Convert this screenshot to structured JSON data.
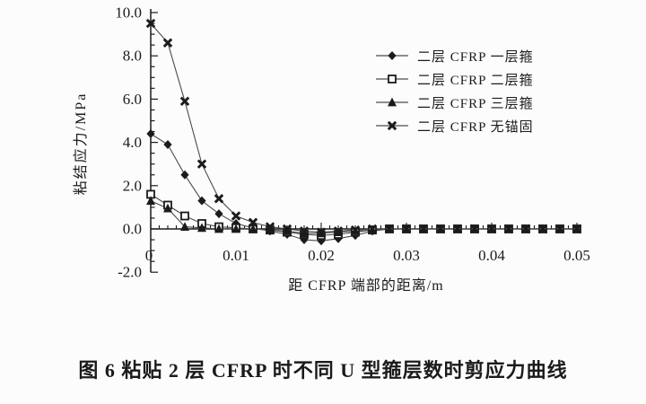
{
  "figure": {
    "caption": "图 6  粘贴 2 层 CFRP 时不同 U 型箍层数时剪应力曲线"
  },
  "chart_data": {
    "type": "line",
    "title": "",
    "xlabel": "距 CFRP 端部的距离/m",
    "ylabel": "粘结应力/MPa",
    "xlim": [
      0,
      0.05
    ],
    "ylim": [
      -2.0,
      10.0
    ],
    "x_tick_values": [
      0,
      0.01,
      0.02,
      0.03,
      0.04,
      0.05
    ],
    "x_tick_labels": [
      "0",
      "0.01",
      "0.02",
      "0.03",
      "0.04",
      "0.05"
    ],
    "x_minor_step": 0.001,
    "y_tick_values": [
      -2,
      0,
      2,
      4,
      6,
      8,
      10
    ],
    "y_tick_labels": [
      "-2.0",
      "0.0",
      "2.0",
      "4.0",
      "6.0",
      "8.0",
      "10.0"
    ],
    "y_minor_step": 0.5,
    "grid": false,
    "legend_position": "upper-right-inside",
    "ink_color": "#1b1b1b",
    "line_color": "#4d4d4d",
    "background_color": "#fcfcfc",
    "x": [
      0,
      0.002,
      0.004,
      0.006,
      0.008,
      0.01,
      0.012,
      0.014,
      0.016,
      0.018,
      0.02,
      0.022,
      0.024,
      0.026,
      0.028,
      0.03,
      0.032,
      0.034,
      0.036,
      0.038,
      0.04,
      0.042,
      0.044,
      0.046,
      0.048,
      0.05
    ],
    "series": [
      {
        "name": "二层 CFRP 一层箍",
        "marker": "diamond",
        "values": [
          4.4,
          3.9,
          2.5,
          1.3,
          0.7,
          0.25,
          0.05,
          -0.1,
          -0.25,
          -0.5,
          -0.55,
          -0.45,
          -0.3,
          -0.1,
          0,
          0,
          0,
          0,
          0,
          0,
          0,
          0,
          0,
          0,
          0,
          0
        ]
      },
      {
        "name": "二层 CFRP 二层箍",
        "marker": "open-square",
        "values": [
          1.6,
          1.1,
          0.6,
          0.25,
          0.1,
          0.05,
          0,
          -0.05,
          -0.15,
          -0.25,
          -0.3,
          -0.25,
          -0.15,
          -0.05,
          0,
          0,
          0,
          0,
          0,
          0,
          0,
          0,
          0,
          0,
          0,
          0
        ]
      },
      {
        "name": "二层 CFRP 三层箍",
        "marker": "triangle",
        "values": [
          1.3,
          0.95,
          0.1,
          0.05,
          0,
          0,
          0,
          -0.05,
          -0.1,
          -0.2,
          -0.2,
          -0.15,
          -0.1,
          -0.05,
          0,
          0,
          0,
          0,
          0,
          0,
          0,
          0,
          0,
          0,
          0,
          0
        ]
      },
      {
        "name": "二层 CFRP 无锚固",
        "marker": "x-cross",
        "values": [
          9.5,
          8.6,
          5.9,
          3.0,
          1.4,
          0.6,
          0.3,
          0.1,
          0,
          -0.1,
          -0.15,
          -0.1,
          -0.05,
          0,
          0,
          0,
          0,
          0,
          0,
          0,
          0,
          0,
          0,
          0,
          0,
          0
        ]
      }
    ]
  }
}
